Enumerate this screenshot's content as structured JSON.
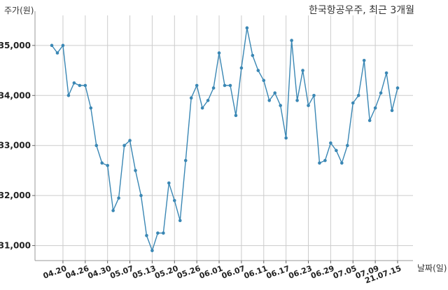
{
  "chart_data": {
    "type": "line",
    "title": "한국항공우주, 최근 3개월",
    "ylabel": "주가(원)",
    "xlabel": "날짜(일)",
    "ylim": [
      30700,
      35600
    ],
    "yticks": [
      31000,
      32000,
      33000,
      34000,
      35000
    ],
    "ytick_labels": [
      "31,000",
      "32,000",
      "33,000",
      "34,000",
      "35,000"
    ],
    "grid": true,
    "line_color": "#3a87b4",
    "x_tick_labels": [
      {
        "index": 2,
        "label": "04.20"
      },
      {
        "index": 6,
        "label": "04.26"
      },
      {
        "index": 10,
        "label": "04.30"
      },
      {
        "index": 14,
        "label": "05.07"
      },
      {
        "index": 18,
        "label": "05.13"
      },
      {
        "index": 22,
        "label": "05.20"
      },
      {
        "index": 26,
        "label": "05.26"
      },
      {
        "index": 30,
        "label": "06.01"
      },
      {
        "index": 34,
        "label": "06.07"
      },
      {
        "index": 38,
        "label": "06.11"
      },
      {
        "index": 42,
        "label": "06.17"
      },
      {
        "index": 46,
        "label": "06.23"
      },
      {
        "index": 50,
        "label": "06.29"
      },
      {
        "index": 54,
        "label": "07.05"
      },
      {
        "index": 58,
        "label": "07.09"
      },
      {
        "index": 62,
        "label": "21.07.15"
      }
    ],
    "values": [
      35000,
      34850,
      35000,
      34000,
      34250,
      34200,
      34200,
      33750,
      33000,
      32650,
      32600,
      31700,
      31950,
      33000,
      33100,
      32500,
      32000,
      31200,
      30900,
      31250,
      31250,
      32250,
      31900,
      31500,
      32700,
      33950,
      34200,
      33750,
      33900,
      34150,
      34850,
      34200,
      34200,
      33600,
      34550,
      35350,
      34800,
      34500,
      34300,
      33900,
      34050,
      33800,
      33150,
      35100,
      33900,
      34500,
      33800,
      34000,
      32650,
      32700,
      33050,
      32900,
      32650,
      33000,
      33850,
      34000,
      34700,
      33500,
      33750,
      34050,
      34450,
      33700,
      34150
    ]
  }
}
